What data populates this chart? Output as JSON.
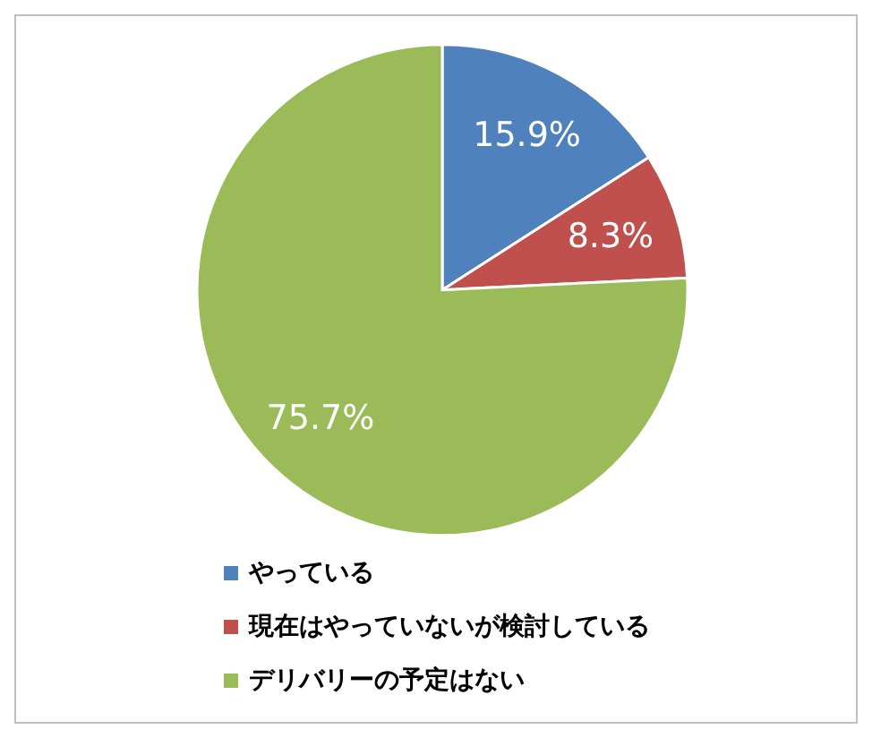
{
  "chart_data": {
    "type": "pie",
    "categories": [
      "やっている",
      "現在はやっていないが検討している",
      "デリバリーの予定はない"
    ],
    "values": [
      15.9,
      8.3,
      75.7
    ],
    "colors": [
      "#4f81bd",
      "#c0504d",
      "#9bbb59"
    ],
    "value_labels": [
      "15.9%",
      "8.3%",
      "75.7%"
    ],
    "legend": "bottom"
  }
}
